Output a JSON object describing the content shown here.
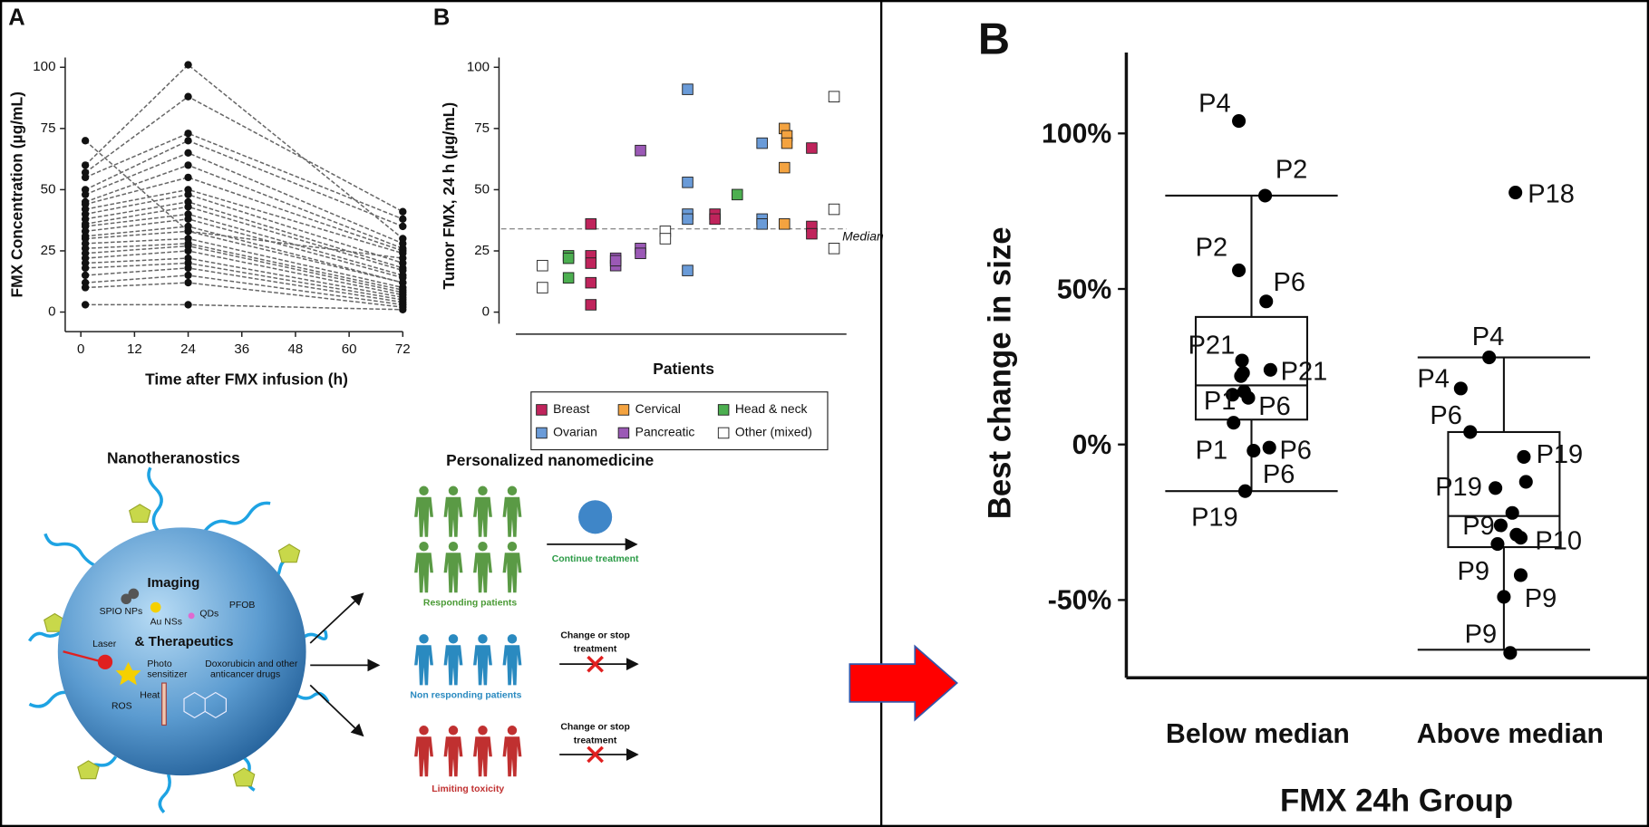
{
  "chart_data": [
    {
      "type": "line",
      "title": "A",
      "xlabel": "Time after FMX infusion (h)",
      "ylabel": "FMX Concentration (µg/mL)",
      "x": [
        1,
        24,
        72
      ],
      "color": "#666666",
      "xlim": [
        -3.5,
        72
      ],
      "ylim": [
        -8,
        104
      ],
      "xticks": [
        0,
        12,
        24,
        36,
        48,
        60,
        72
      ],
      "yticks": [
        0,
        25,
        50,
        75,
        100
      ],
      "series": [
        {
          "values": [
            70,
            33,
            22
          ]
        },
        {
          "values": [
            60,
            101,
            30
          ]
        },
        {
          "values": [
            57,
            88,
            41
          ]
        },
        {
          "values": [
            55,
            73,
            38
          ]
        },
        {
          "values": [
            50,
            70,
            35
          ]
        },
        {
          "values": [
            48,
            65,
            28
          ]
        },
        {
          "values": [
            45,
            60,
            26
          ]
        },
        {
          "values": [
            44,
            55,
            25
          ]
        },
        {
          "values": [
            42,
            50,
            24
          ]
        },
        {
          "values": [
            40,
            48,
            20
          ]
        },
        {
          "values": [
            38,
            45,
            18
          ]
        },
        {
          "values": [
            36,
            43,
            17
          ]
        },
        {
          "values": [
            35,
            40,
            15
          ]
        },
        {
          "values": [
            33,
            38,
            14
          ]
        },
        {
          "values": [
            31,
            35,
            12
          ]
        },
        {
          "values": [
            30,
            33,
            12
          ]
        },
        {
          "values": [
            28,
            30,
            10
          ]
        },
        {
          "values": [
            26,
            28,
            9
          ]
        },
        {
          "values": [
            24,
            27,
            8
          ]
        },
        {
          "values": [
            22,
            25,
            7
          ]
        },
        {
          "values": [
            20,
            22,
            6
          ]
        },
        {
          "values": [
            18,
            20,
            5
          ]
        },
        {
          "values": [
            15,
            18,
            4
          ]
        },
        {
          "values": [
            12,
            15,
            3
          ]
        },
        {
          "values": [
            10,
            12,
            2
          ]
        },
        {
          "values": [
            3,
            3,
            1
          ]
        }
      ]
    },
    {
      "type": "scatter",
      "title": "B",
      "xlabel": "Patients",
      "ylabel": "Tumor FMX, 24 h (µg/mL)",
      "xlim": [
        -0.7,
        13.3
      ],
      "ylim": [
        -9,
        104
      ],
      "yticks": [
        0,
        25,
        50,
        75,
        100
      ],
      "median": {
        "value": 34,
        "label": "Median"
      },
      "series": [
        {
          "name": "Breast",
          "color": "#c0245c",
          "x": [
            3,
            3,
            3,
            3,
            3,
            8,
            8,
            11.9,
            11.9,
            11.9
          ],
          "values": [
            36,
            23,
            20,
            12,
            3,
            40,
            38,
            67,
            35,
            32
          ]
        },
        {
          "name": "Cervical",
          "color": "#f4a340",
          "x": [
            10.8,
            10.9,
            10.9,
            10.8,
            10.8
          ],
          "values": [
            75,
            72,
            69,
            59,
            36
          ]
        },
        {
          "name": "Head & neck",
          "color": "#4caf50",
          "x": [
            2.1,
            2.1,
            2.1,
            8.9
          ],
          "values": [
            23,
            22,
            14,
            48
          ]
        },
        {
          "name": "Ovarian",
          "color": "#6a9bd8",
          "x": [
            6.9,
            6.9,
            6.9,
            6.9,
            6.9,
            9.9,
            9.9,
            9.9
          ],
          "values": [
            91,
            53,
            40,
            38,
            17,
            69,
            38,
            36
          ]
        },
        {
          "name": "Pancreatic",
          "color": "#9b59b6",
          "x": [
            4,
            4,
            4,
            5,
            5,
            5
          ],
          "values": [
            22,
            19,
            21,
            26,
            24,
            66
          ]
        },
        {
          "name": "Other (mixed)",
          "color": "#ffffff",
          "x": [
            1.05,
            1.05,
            6,
            6,
            12.8,
            12.8,
            12.8
          ],
          "values": [
            19,
            10,
            33,
            30,
            88,
            42,
            26
          ]
        }
      ]
    },
    {
      "type": "box",
      "title": "B",
      "xlabel": "FMX 24h Group",
      "ylabel": "Best change in size",
      "categories": [
        "Below median",
        "Above median"
      ],
      "ylim": [
        -75,
        126
      ],
      "yticks": [
        {
          "value": 100,
          "label": "100%"
        },
        {
          "value": 50,
          "label": "50%"
        },
        {
          "value": 0,
          "label": "0%"
        },
        {
          "value": -50,
          "label": "-50%"
        }
      ],
      "boxes": [
        {
          "whislo": -15,
          "q1": 8,
          "med": 19,
          "q3": 41,
          "whishi": 80
        },
        {
          "whislo": -66,
          "q1": -33,
          "med": -23,
          "q3": 4,
          "whishi": 28
        }
      ],
      "series": [
        {
          "values": [
            104,
            80,
            56,
            46,
            27,
            24,
            23,
            22,
            17,
            16,
            15,
            7,
            -1,
            -2,
            -15
          ],
          "point_labels": [
            "P4",
            "P2",
            "P2",
            "P6",
            "P21",
            "P21",
            null,
            null,
            null,
            "P1",
            "P6",
            "P1",
            "P6",
            "P6",
            "P19"
          ]
        },
        {
          "values": [
            81,
            28,
            18,
            4,
            -4,
            -14,
            -12,
            -22,
            -26,
            -29,
            -30,
            -32,
            -42,
            -49,
            -67
          ],
          "point_labels": [
            "P18",
            "P4",
            "P4",
            "P6",
            "P19",
            "P19",
            null,
            null,
            "P9",
            "P10",
            null,
            null,
            "P9",
            "P9",
            "P9"
          ]
        }
      ]
    }
  ],
  "diagram": {
    "left_title": "Nanotheranostics",
    "right_title": "Personalized nanomedicine",
    "imaging": "Imaging",
    "spio": "SPIO NPs",
    "au": "Au NSs",
    "qds": "QDs",
    "pfob": "PFOB",
    "therapeutics": "& Therapeutics",
    "laser": "Laser",
    "photosensitizer": [
      "Photo",
      "sensitizer"
    ],
    "drugs": [
      "Doxorubicin and other",
      "anticancer drugs"
    ],
    "ros": "ROS",
    "heat": "Heat",
    "outcomes": [
      {
        "group": "Responding patients",
        "action": [
          "Continue treatment"
        ]
      },
      {
        "group": "Non responding patients",
        "action": [
          "Change or stop",
          "treatment"
        ]
      },
      {
        "group": "Limiting toxicity",
        "action": [
          "Change or stop",
          "treatment"
        ]
      }
    ]
  }
}
